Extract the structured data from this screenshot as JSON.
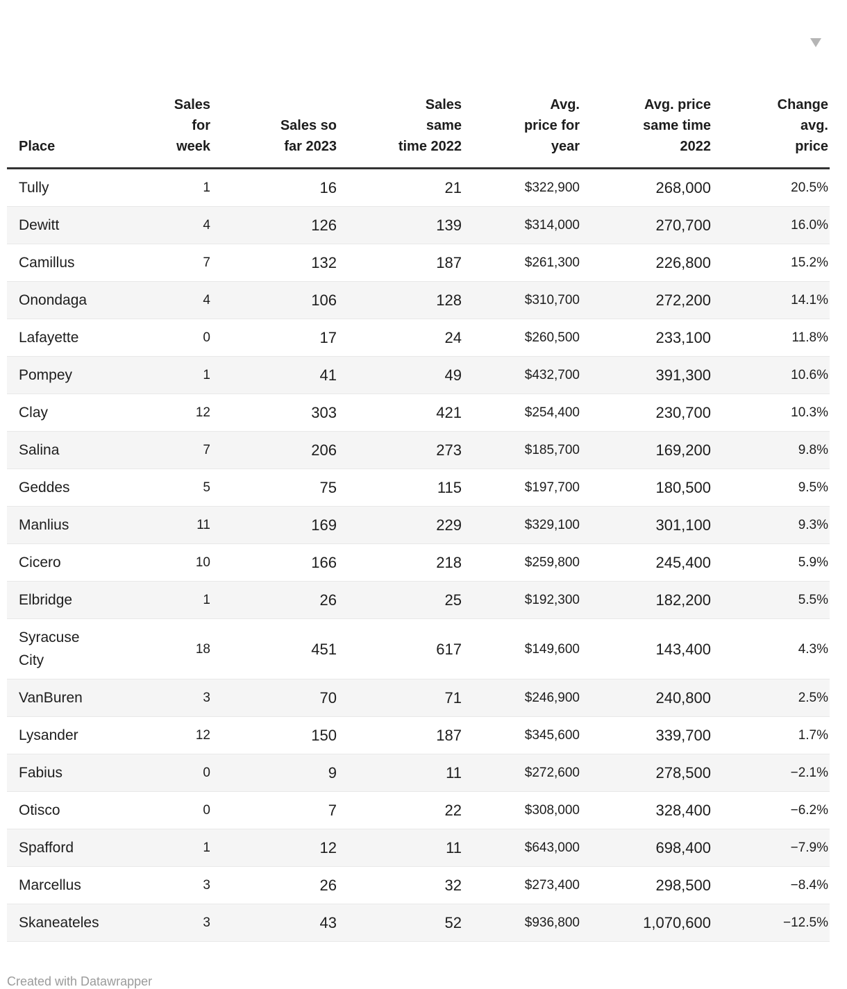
{
  "header": {
    "columns": [
      {
        "id": "place",
        "label": "Place",
        "align": "left",
        "size": "large"
      },
      {
        "id": "sales_for_week",
        "label": "Sales\nfor\nweek",
        "align": "right",
        "size": "small"
      },
      {
        "id": "sales_so_far_2023",
        "label": "Sales so\nfar 2023",
        "align": "right",
        "size": "large"
      },
      {
        "id": "sales_same_time_2022",
        "label": "Sales\nsame\ntime 2022",
        "align": "right",
        "size": "large"
      },
      {
        "id": "avg_price_for_year",
        "label": "Avg.\nprice for\nyear",
        "align": "right",
        "size": "small"
      },
      {
        "id": "avg_price_same_time_2022",
        "label": "Avg. price\nsame time\n2022",
        "align": "right",
        "size": "large"
      },
      {
        "id": "change_avg_price",
        "label": "Change\navg.\nprice",
        "align": "right",
        "size": "small",
        "sorted": "descending"
      }
    ]
  },
  "chart_data": {
    "type": "table",
    "title": "",
    "columns": [
      "Place",
      "Sales for week",
      "Sales so far 2023",
      "Sales same time 2022",
      "Avg. price for year",
      "Avg. price same time 2022",
      "Change avg. price"
    ],
    "rows": [
      [
        "Tully",
        "1",
        "16",
        "21",
        "$322,900",
        "268,000",
        "20.5%"
      ],
      [
        "Dewitt",
        "4",
        "126",
        "139",
        "$314,000",
        "270,700",
        "16.0%"
      ],
      [
        "Camillus",
        "7",
        "132",
        "187",
        "$261,300",
        "226,800",
        "15.2%"
      ],
      [
        "Onondaga",
        "4",
        "106",
        "128",
        "$310,700",
        "272,200",
        "14.1%"
      ],
      [
        "Lafayette",
        "0",
        "17",
        "24",
        "$260,500",
        "233,100",
        "11.8%"
      ],
      [
        "Pompey",
        "1",
        "41",
        "49",
        "$432,700",
        "391,300",
        "10.6%"
      ],
      [
        "Clay",
        "12",
        "303",
        "421",
        "$254,400",
        "230,700",
        "10.3%"
      ],
      [
        "Salina",
        "7",
        "206",
        "273",
        "$185,700",
        "169,200",
        "9.8%"
      ],
      [
        "Geddes",
        "5",
        "75",
        "115",
        "$197,700",
        "180,500",
        "9.5%"
      ],
      [
        "Manlius",
        "11",
        "169",
        "229",
        "$329,100",
        "301,100",
        "9.3%"
      ],
      [
        "Cicero",
        "10",
        "166",
        "218",
        "$259,800",
        "245,400",
        "5.9%"
      ],
      [
        "Elbridge",
        "1",
        "26",
        "25",
        "$192,300",
        "182,200",
        "5.5%"
      ],
      [
        "Syracuse\nCity",
        "18",
        "451",
        "617",
        "$149,600",
        "143,400",
        "4.3%"
      ],
      [
        "VanBuren",
        "3",
        "70",
        "71",
        "$246,900",
        "240,800",
        "2.5%"
      ],
      [
        "Lysander",
        "12",
        "150",
        "187",
        "$345,600",
        "339,700",
        "1.7%"
      ],
      [
        "Fabius",
        "0",
        "9",
        "11",
        "$272,600",
        "278,500",
        "−2.1%"
      ],
      [
        "Otisco",
        "0",
        "7",
        "22",
        "$308,000",
        "328,400",
        "−6.2%"
      ],
      [
        "Spafford",
        "1",
        "12",
        "11",
        "$643,000",
        "698,400",
        "−7.9%"
      ],
      [
        "Marcellus",
        "3",
        "26",
        "32",
        "$273,400",
        "298,500",
        "−8.4%"
      ],
      [
        "Skaneateles",
        "3",
        "43",
        "52",
        "$936,800",
        "1,070,600",
        "−12.5%"
      ]
    ]
  },
  "footer": {
    "credit": "Created with Datawrapper"
  },
  "colors": {
    "stripe": "#f5f5f5",
    "row_border": "#e8e8e8",
    "header_border": "#333333",
    "text": "#1d1d1d",
    "sort_arrow": "#b5b5b5",
    "footer_text": "#9b9b9b"
  }
}
